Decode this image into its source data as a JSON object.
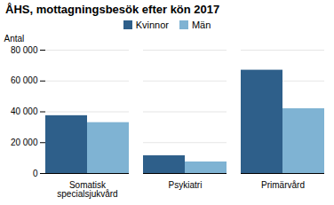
{
  "chart_data": {
    "type": "bar",
    "title": "ÅHS, mottagningsbesök efter kön 2017",
    "ylabel": "Antal",
    "categories": [
      "Somatisk\nspecialsjukvård",
      "Psykiatri",
      "Primärvård"
    ],
    "series": [
      {
        "name": "Kvinnor",
        "color": "#2e5f8a",
        "values": [
          37500,
          11500,
          67000
        ]
      },
      {
        "name": "Män",
        "color": "#7fb3d3",
        "values": [
          33000,
          7500,
          42000
        ]
      }
    ],
    "ylim": [
      0,
      80000
    ],
    "yticks": [
      0,
      {
        "value": 20000,
        "label": "20 000"
      },
      {
        "value": 40000,
        "label": "40 000"
      },
      {
        "value": 60000,
        "label": "60 000"
      },
      {
        "value": 80000,
        "label": "80 000"
      }
    ],
    "grid": true,
    "legend": "top"
  }
}
